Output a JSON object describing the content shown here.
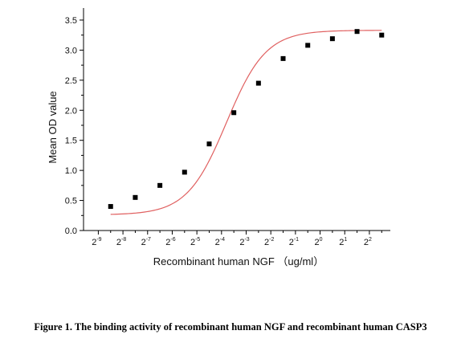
{
  "figure_caption": "Figure 1. The binding activity of recombinant human NGF and recombinant human CASP3",
  "chart_data": {
    "type": "scatter",
    "title": "",
    "xlabel": "Recombinant human  NGF （ug/ml）",
    "ylabel": "Mean OD value",
    "x_scale": "log2",
    "x_ticks": [
      -9,
      -8,
      -7,
      -6,
      -5,
      -4,
      -3,
      -2,
      -1,
      0,
      1,
      2
    ],
    "x_tick_base": "2",
    "x_tick_exponents": [
      "-9",
      "-8",
      "-7",
      "-6",
      "-5",
      "-4",
      "-3",
      "-2",
      "-1",
      "0",
      "1",
      "2"
    ],
    "xlim": [
      -9.6,
      2.85
    ],
    "ylim": [
      0,
      3.7
    ],
    "y_ticks": [
      "0.0",
      "0.5",
      "1.0",
      "1.5",
      "2.0",
      "2.5",
      "3.0",
      "3.5"
    ],
    "grid": false,
    "colors": {
      "fit_line": "#e06060",
      "marker": "#000000",
      "axis": "#000000"
    },
    "series": [
      {
        "marker": "square",
        "x": [
          -8.5,
          -7.5,
          -6.5,
          -5.5,
          -4.5,
          -3.5,
          -2.5,
          -1.5,
          -0.5,
          0.5,
          1.5,
          2.5
        ],
        "y": [
          0.4,
          0.55,
          0.75,
          0.97,
          1.44,
          1.96,
          2.45,
          2.86,
          3.08,
          3.19,
          3.31,
          3.25
        ]
      }
    ],
    "fit": {
      "model": "4PL",
      "bottom": 0.26,
      "top": 3.33,
      "x50": -3.8,
      "slope": 0.95,
      "x_range": [
        -8.5,
        2.5
      ]
    }
  }
}
